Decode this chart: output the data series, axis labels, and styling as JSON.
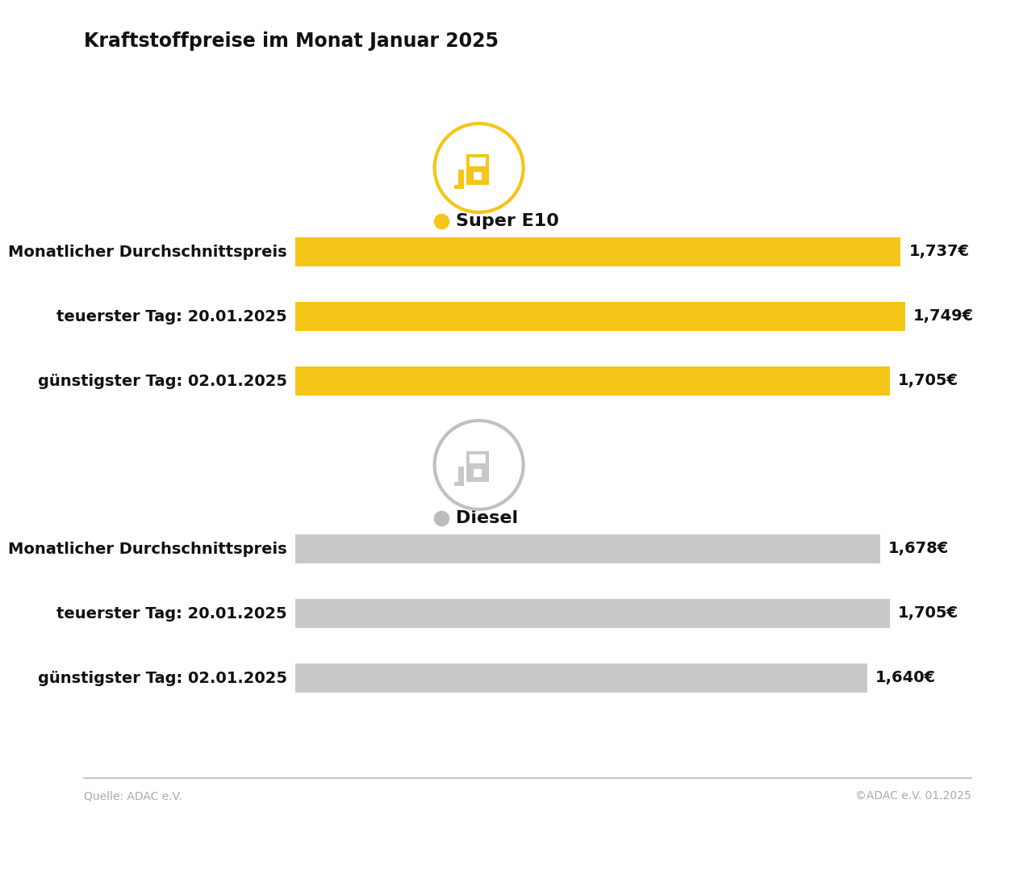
{
  "title": "Kraftstoffpreise im Monat Januar 2025",
  "background_color": "#ffffff",
  "super_e10": {
    "label": "Super E10",
    "color": "#F5C518",
    "dot_color": "#F5C518",
    "border_color": "#F5C518",
    "rows": [
      {
        "label": "Monatlicher Durchschnittspreis",
        "value": 1.737,
        "display": "1,737€"
      },
      {
        "label": "teuerster Tag: 20.01.2025",
        "value": 1.749,
        "display": "1,749€"
      },
      {
        "label": "günstigster Tag: 02.01.2025",
        "value": 1.705,
        "display": "1,705€"
      }
    ]
  },
  "diesel": {
    "label": "Diesel",
    "color": "#C8C8C8",
    "dot_color": "#BBBBBB",
    "border_color": "#C0C0C0",
    "rows": [
      {
        "label": "Monatlicher Durchschnittspreis",
        "value": 1.678,
        "display": "1,678€"
      },
      {
        "label": "teuerster Tag: 20.01.2025",
        "value": 1.705,
        "display": "1,705€"
      },
      {
        "label": "günstigster Tag: 02.01.2025",
        "value": 1.64,
        "display": "1,640€"
      }
    ]
  },
  "bar_max": 1.8,
  "bar_min": 0.0,
  "bar_scale_max": 1.749,
  "footer_left": "Quelle: ADAC e.V.",
  "footer_right": "©ADAC e.V. 01.2025",
  "title_fontsize": 17,
  "label_fontsize": 14,
  "value_fontsize": 14,
  "section_label_fontsize": 16
}
